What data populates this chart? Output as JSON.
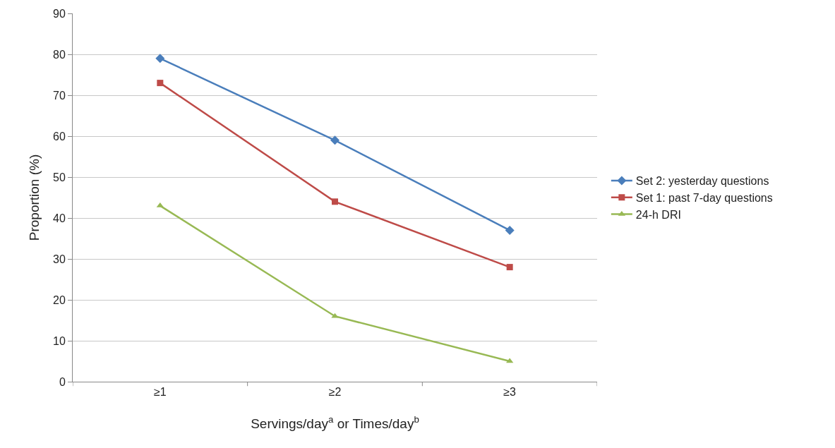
{
  "chart_data": {
    "type": "line",
    "xlabel": "Servings/day$^{a}$ or Times/day$^{b}$",
    "ylabel": "Proportion (%)",
    "categories": [
      "≥1",
      "≥2",
      "≥3"
    ],
    "series": [
      {
        "name": "Set 2: yesterday questions",
        "color": "#4a7ebb",
        "marker": "diamond",
        "values": [
          79,
          59,
          37
        ]
      },
      {
        "name": "Set 1: past 7-day questions",
        "color": "#be4b48",
        "marker": "square",
        "values": [
          73,
          44,
          28
        ]
      },
      {
        "name": "24-h DRI",
        "color": "#98b954",
        "marker": "triangle",
        "values": [
          43,
          16,
          5
        ]
      }
    ],
    "ylim": [
      0,
      90
    ],
    "yticks": [
      0,
      10,
      20,
      30,
      40,
      50,
      60,
      70,
      80,
      90
    ],
    "grid": "y",
    "legend": "right",
    "line_style": "solid"
  }
}
